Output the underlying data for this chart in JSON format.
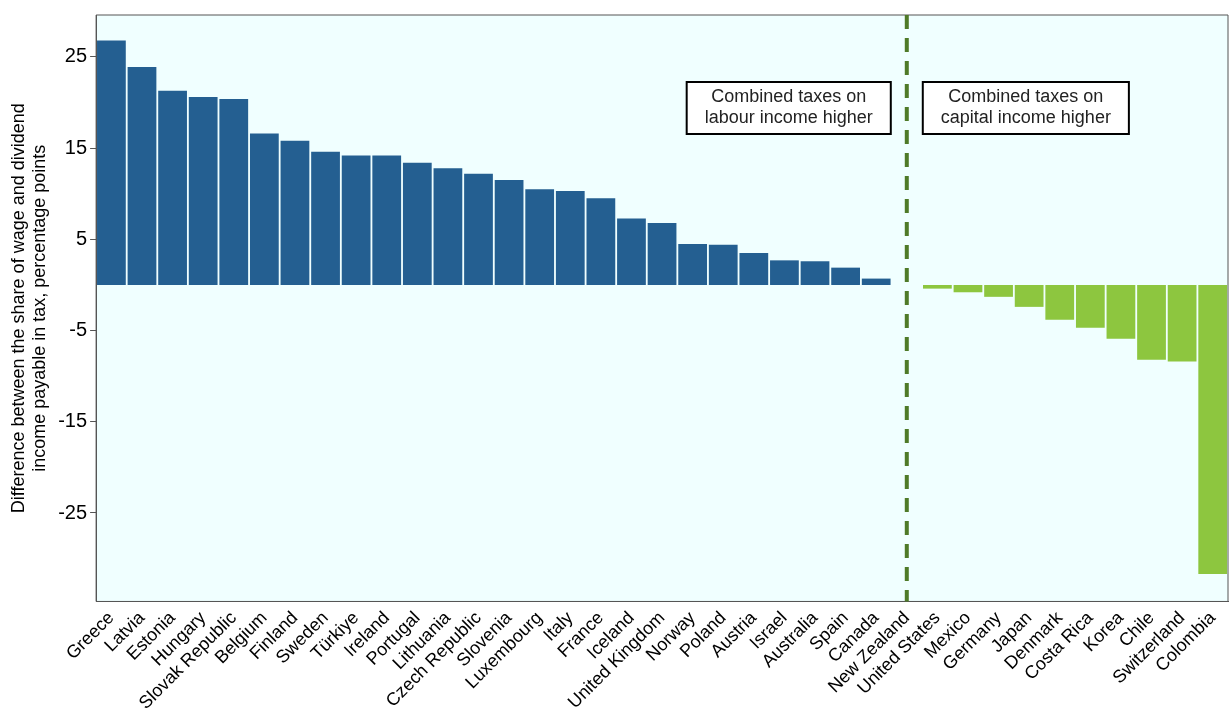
{
  "chart_data": {
    "type": "bar",
    "ylabel": "Difference between the share of wage and dividend\nincome payable in tax, percentage points",
    "categories": [
      "Greece",
      "Latvia",
      "Estonia",
      "Hungary",
      "Slovak Republic",
      "Belgium",
      "Finland",
      "Sweden",
      "Türkiye",
      "Ireland",
      "Portugal",
      "Lithuania",
      "Czech Republic",
      "Slovenia",
      "Luxembourg",
      "Italy",
      "France",
      "Iceland",
      "United Kingdom",
      "Norway",
      "Poland",
      "Austria",
      "Israel",
      "Australia",
      "Spain",
      "Canada",
      "New Zealand",
      "United States",
      "Mexico",
      "Germany",
      "Japan",
      "Denmark",
      "Costa Rica",
      "Korea",
      "Chile",
      "Switzerland",
      "Colombia"
    ],
    "values": [
      26.8,
      23.9,
      21.3,
      20.6,
      20.4,
      16.6,
      15.8,
      14.6,
      14.2,
      14.2,
      13.4,
      12.8,
      12.2,
      11.5,
      10.5,
      10.3,
      9.5,
      7.3,
      6.8,
      4.5,
      4.4,
      3.5,
      2.7,
      2.6,
      1.9,
      0.7,
      0,
      -0.4,
      -0.8,
      -1.3,
      -2.4,
      -3.8,
      -4.7,
      -5.9,
      -8.2,
      -8.4,
      -31.7
    ],
    "colors": [
      "#245f91",
      "#245f91",
      "#245f91",
      "#245f91",
      "#245f91",
      "#245f91",
      "#245f91",
      "#245f91",
      "#245f91",
      "#245f91",
      "#245f91",
      "#245f91",
      "#245f91",
      "#245f91",
      "#245f91",
      "#245f91",
      "#245f91",
      "#245f91",
      "#245f91",
      "#245f91",
      "#245f91",
      "#245f91",
      "#245f91",
      "#245f91",
      "#245f91",
      "#245f91",
      "#245f91",
      "#8dc63f",
      "#8dc63f",
      "#8dc63f",
      "#8dc63f",
      "#8dc63f",
      "#8dc63f",
      "#8dc63f",
      "#8dc63f",
      "#8dc63f",
      "#8dc63f"
    ],
    "ylim": [
      -34.7,
      29.6
    ],
    "yticks": [
      -25,
      -15,
      -5,
      5,
      15,
      25
    ],
    "grid": false,
    "legend": false,
    "ref_lines": [
      {
        "axis": "x",
        "value": "New Zealand",
        "color": "#4f7a28",
        "line_style": "dashed"
      }
    ],
    "annotations": [
      "Combined taxes on\nlabour income higher",
      "Combined taxes on\ncapital income higher"
    ]
  }
}
